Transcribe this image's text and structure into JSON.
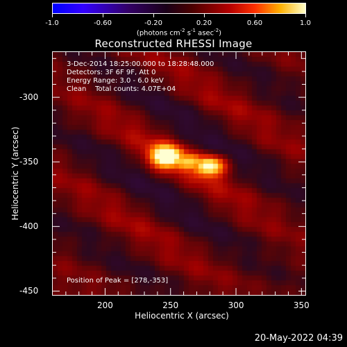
{
  "colorbar": {
    "ticks": [
      "-1.0",
      "-0.60",
      "-0.20",
      "0.20",
      "0.60",
      "1.0"
    ],
    "units_text": "(photons cm",
    "units_sup1": "-2",
    "units_mid": " s",
    "units_sup2": "-1",
    "units_tail": " asec",
    "units_sup3": "-2",
    "units_close": ")"
  },
  "chart_data": {
    "type": "heatmap",
    "title": "Reconstructed RHESSI Image",
    "xlabel": "Heliocentric X (arcsec)",
    "ylabel": "Heliocentric Y (arcsec)",
    "xlim": [
      160,
      353
    ],
    "ylim": [
      -453,
      -265
    ],
    "xticks": [
      "200",
      "250",
      "300",
      "350"
    ],
    "yticks": [
      "-300",
      "-350",
      "-400",
      "-450"
    ],
    "value_range": [
      -1.0,
      1.0
    ],
    "peak": [
      278,
      -353
    ]
  },
  "annotations": {
    "time": "3-Dec-2014 18:25:00.000 to 18:28:48.000",
    "detectors": "Detectors: 3F 6F 9F, Att 0",
    "energy": "Energy Range: 3.0 - 6.0 keV",
    "clean": "Clean    Total counts: 4.07E+04",
    "peak": "Position of Peak = [278,-353]"
  },
  "footer": {
    "timestamp": "20-May-2022 04:39"
  }
}
